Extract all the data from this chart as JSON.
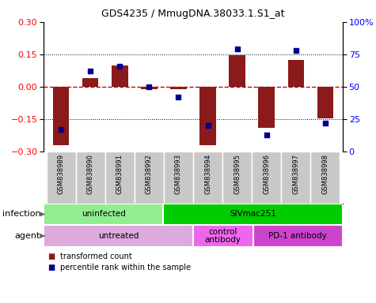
{
  "title": "GDS4235 / MmugDNA.38033.1.S1_at",
  "samples": [
    "GSM838989",
    "GSM838990",
    "GSM838991",
    "GSM838992",
    "GSM838993",
    "GSM838994",
    "GSM838995",
    "GSM838996",
    "GSM838997",
    "GSM838998"
  ],
  "transformed_count": [
    -0.27,
    0.04,
    0.1,
    -0.01,
    -0.01,
    -0.27,
    0.145,
    -0.19,
    0.125,
    -0.145
  ],
  "percentile_rank": [
    17,
    62,
    66,
    50,
    42,
    20,
    79,
    13,
    78,
    22
  ],
  "ylim": [
    -0.3,
    0.3
  ],
  "yticks_left": [
    -0.3,
    -0.15,
    0,
    0.15,
    0.3
  ],
  "yticks_right": [
    0,
    25,
    50,
    75,
    100
  ],
  "bar_color": "#8B1A1A",
  "dot_color": "#00008B",
  "zero_line_color": "#CC0000",
  "infection_groups": [
    {
      "label": "uninfected",
      "start": 0,
      "end": 4,
      "color": "#90EE90"
    },
    {
      "label": "SIVmac251",
      "start": 4,
      "end": 10,
      "color": "#00CC00"
    }
  ],
  "agent_groups": [
    {
      "label": "untreated",
      "start": 0,
      "end": 5,
      "color": "#DDAADD"
    },
    {
      "label": "control\nantibody",
      "start": 5,
      "end": 7,
      "color": "#EE66EE"
    },
    {
      "label": "PD-1 antibody",
      "start": 7,
      "end": 10,
      "color": "#CC44CC"
    }
  ],
  "sample_box_color": "#C8C8C8",
  "bg_color": "#FFFFFF",
  "legend": [
    "transformed count",
    "percentile rank within the sample"
  ]
}
